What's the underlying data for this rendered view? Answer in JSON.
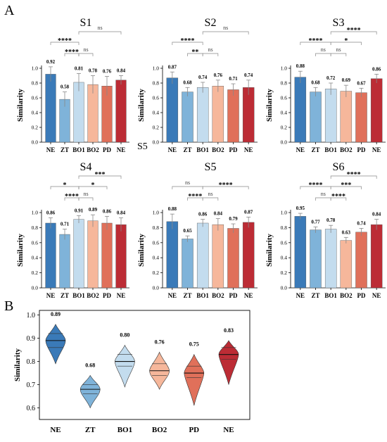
{
  "panel_letters": {
    "a": "A",
    "b": "B"
  },
  "stray_label": "S5",
  "chart_data": [
    {
      "type": "bar",
      "title": "S1",
      "ylabel": "Similarity",
      "categories": [
        "NE",
        "ZT",
        "BO1",
        "BO2",
        "PD",
        "NE"
      ],
      "values": [
        0.92,
        0.58,
        0.81,
        0.78,
        0.76,
        0.84
      ],
      "errors": [
        0.1,
        0.1,
        0.12,
        0.12,
        0.13,
        0.06
      ],
      "value_labels": [
        "0.92",
        "0.58",
        "0.81",
        "0.78",
        "0.76",
        "0.84"
      ],
      "ylim": [
        0.0,
        1.0
      ],
      "yticks": [
        "0.0",
        "0.2",
        "0.4",
        "0.6",
        "0.8",
        "1.0"
      ],
      "colors": [
        "#3a7ab8",
        "#7fb3d9",
        "#c3dcee",
        "#f6b79b",
        "#e0705a",
        "#bc2c35"
      ],
      "significance": [
        {
          "from": 0,
          "to": 2,
          "label": "****",
          "level": 2
        },
        {
          "from": 2,
          "to": 5,
          "label": "ns",
          "level": 3
        },
        {
          "from": 1,
          "to": 2,
          "label": "****",
          "level": 1
        },
        {
          "from": 2,
          "to": 3,
          "label": "ns",
          "level": 1
        }
      ]
    },
    {
      "type": "bar",
      "title": "S2",
      "ylabel": "Similarity",
      "categories": [
        "NE",
        "ZT",
        "BO1",
        "BO2",
        "PD",
        "NE"
      ],
      "values": [
        0.87,
        0.68,
        0.74,
        0.76,
        0.71,
        0.74
      ],
      "errors": [
        0.08,
        0.06,
        0.07,
        0.08,
        0.08,
        0.1
      ],
      "value_labels": [
        "0.87",
        "0.68",
        "0.74",
        "0.76",
        "0.71",
        "0.74"
      ],
      "ylim": [
        0.0,
        1.0
      ],
      "yticks": [
        "0.0",
        "0.2",
        "0.4",
        "0.6",
        "0.8",
        "1.0"
      ],
      "colors": [
        "#3a7ab8",
        "#7fb3d9",
        "#c3dcee",
        "#f6b79b",
        "#e0705a",
        "#bc2c35"
      ],
      "significance": [
        {
          "from": 0,
          "to": 2,
          "label": "****",
          "level": 2
        },
        {
          "from": 2,
          "to": 5,
          "label": "ns",
          "level": 3
        },
        {
          "from": 1,
          "to": 2,
          "label": "**",
          "level": 1
        },
        {
          "from": 2,
          "to": 3,
          "label": "ns",
          "level": 1
        }
      ]
    },
    {
      "type": "bar",
      "title": "S3",
      "ylabel": "Similarity",
      "categories": [
        "NE",
        "ZT",
        "BO1",
        "BO2",
        "PD",
        "NE"
      ],
      "values": [
        0.88,
        0.68,
        0.72,
        0.69,
        0.67,
        0.86
      ],
      "errors": [
        0.08,
        0.06,
        0.08,
        0.08,
        0.06,
        0.06
      ],
      "value_labels": [
        "0.88",
        "0.68",
        "0.72",
        "0.69",
        "0.67",
        "0.86"
      ],
      "ylim": [
        0.0,
        1.0
      ],
      "yticks": [
        "0.0",
        "0.2",
        "0.4",
        "0.6",
        "0.8",
        "1.0"
      ],
      "colors": [
        "#3a7ab8",
        "#7fb3d9",
        "#c3dcee",
        "#f6b79b",
        "#e0705a",
        "#bc2c35"
      ],
      "significance": [
        {
          "from": 0,
          "to": 2,
          "label": "****",
          "level": 2
        },
        {
          "from": 2,
          "to": 5,
          "label": "****",
          "level": 3
        },
        {
          "from": 1,
          "to": 2,
          "label": "ns",
          "level": 1
        },
        {
          "from": 2,
          "to": 3,
          "label": "ns",
          "level": 1
        },
        {
          "from": 2,
          "to": 4,
          "label": "*",
          "level": 2
        }
      ]
    },
    {
      "type": "bar",
      "title": "S4",
      "ylabel": "Similarity",
      "categories": [
        "NE",
        "ZT",
        "BO1",
        "BO2",
        "PD",
        "NE"
      ],
      "values": [
        0.86,
        0.71,
        0.91,
        0.89,
        0.86,
        0.84
      ],
      "errors": [
        0.07,
        0.07,
        0.05,
        0.08,
        0.09,
        0.09
      ],
      "value_labels": [
        "0.86",
        "0.71",
        "0.91",
        "0.89",
        "0.86",
        "0.84"
      ],
      "ylim": [
        0.0,
        1.0
      ],
      "yticks": [
        "0.0",
        "0.2",
        "0.4",
        "0.6",
        "0.8",
        "1.0"
      ],
      "colors": [
        "#3a7ab8",
        "#7fb3d9",
        "#c3dcee",
        "#f6b79b",
        "#e0705a",
        "#bc2c35"
      ],
      "significance": [
        {
          "from": 0,
          "to": 2,
          "label": "*",
          "level": 2
        },
        {
          "from": 2,
          "to": 5,
          "label": "***",
          "level": 3
        },
        {
          "from": 1,
          "to": 2,
          "label": "****",
          "level": 1
        },
        {
          "from": 2,
          "to": 3,
          "label": "ns",
          "level": 1
        },
        {
          "from": 2,
          "to": 4,
          "label": "*",
          "level": 2
        }
      ]
    },
    {
      "type": "bar",
      "title": "S5",
      "ylabel": "Similarity",
      "categories": [
        "NE",
        "ZT",
        "BO1",
        "BO2",
        "PD",
        "NE"
      ],
      "values": [
        0.88,
        0.65,
        0.86,
        0.84,
        0.79,
        0.87
      ],
      "errors": [
        0.1,
        0.04,
        0.05,
        0.08,
        0.06,
        0.07
      ],
      "value_labels": [
        "0.88",
        "0.65",
        "0.86",
        "0.84",
        "0.79",
        "0.87"
      ],
      "ylim": [
        0.0,
        1.0
      ],
      "yticks": [
        "0.0",
        "0.2",
        "0.4",
        "0.6",
        "0.8",
        "1.0"
      ],
      "colors": [
        "#3a7ab8",
        "#7fb3d9",
        "#c3dcee",
        "#f6b79b",
        "#e0705a",
        "#bc2c35"
      ],
      "significance": [
        {
          "from": 0,
          "to": 2,
          "label": "ns",
          "level": 2
        },
        {
          "from": 2,
          "to": 5,
          "label": "****",
          "level": 2
        },
        {
          "from": 1,
          "to": 2,
          "label": "****",
          "level": 1
        },
        {
          "from": 2,
          "to": 3,
          "label": "ns",
          "level": 1
        }
      ]
    },
    {
      "type": "bar",
      "title": "S6",
      "ylabel": "Similarity",
      "categories": [
        "NE",
        "ZT",
        "BO1",
        "BO2",
        "PD",
        "NE"
      ],
      "values": [
        0.95,
        0.77,
        0.78,
        0.63,
        0.74,
        0.84
      ],
      "errors": [
        0.04,
        0.04,
        0.05,
        0.04,
        0.05,
        0.07
      ],
      "value_labels": [
        "0.95",
        "0.77",
        "0.78",
        "0.63",
        "0.74",
        "0.84"
      ],
      "ylim": [
        0.0,
        1.0
      ],
      "yticks": [
        "0.0",
        "0.2",
        "0.4",
        "0.6",
        "0.8",
        "1.0"
      ],
      "colors": [
        "#3a7ab8",
        "#7fb3d9",
        "#c3dcee",
        "#f6b79b",
        "#e0705a",
        "#bc2c35"
      ],
      "significance": [
        {
          "from": 0,
          "to": 2,
          "label": "****",
          "level": 2
        },
        {
          "from": 2,
          "to": 5,
          "label": "****",
          "level": 3
        },
        {
          "from": 1,
          "to": 2,
          "label": "ns",
          "level": 1
        },
        {
          "from": 2,
          "to": 3,
          "label": "****",
          "level": 1
        },
        {
          "from": 2,
          "to": 4,
          "label": "***",
          "level": 2
        }
      ]
    },
    {
      "type": "violin",
      "ylabel": "Similarity",
      "categories": [
        "NE",
        "ZT",
        "BO1",
        "BO2",
        "PD",
        "NE"
      ],
      "medians": [
        0.89,
        0.68,
        0.8,
        0.76,
        0.75,
        0.83
      ],
      "ranges": [
        [
          0.79,
          0.96
        ],
        [
          0.6,
          0.74
        ],
        [
          0.69,
          0.87
        ],
        [
          0.68,
          0.84
        ],
        [
          0.61,
          0.83
        ],
        [
          0.7,
          0.89
        ]
      ],
      "quartiles": [
        [
          0.86,
          0.92
        ],
        [
          0.66,
          0.7
        ],
        [
          0.78,
          0.83
        ],
        [
          0.74,
          0.79
        ],
        [
          0.73,
          0.78
        ],
        [
          0.81,
          0.86
        ]
      ],
      "value_labels": [
        "0.89",
        "0.68",
        "0.80",
        "0.76",
        "0.75",
        "0.83"
      ],
      "ylim": [
        0.55,
        1.02
      ],
      "yticks": [
        "1.0",
        "0.9",
        "0.8",
        "0.7",
        "0.6"
      ],
      "colors": [
        "#3a7ab8",
        "#7fb3d9",
        "#c3dcee",
        "#f6b79b",
        "#e0705a",
        "#bc2c35"
      ]
    }
  ]
}
